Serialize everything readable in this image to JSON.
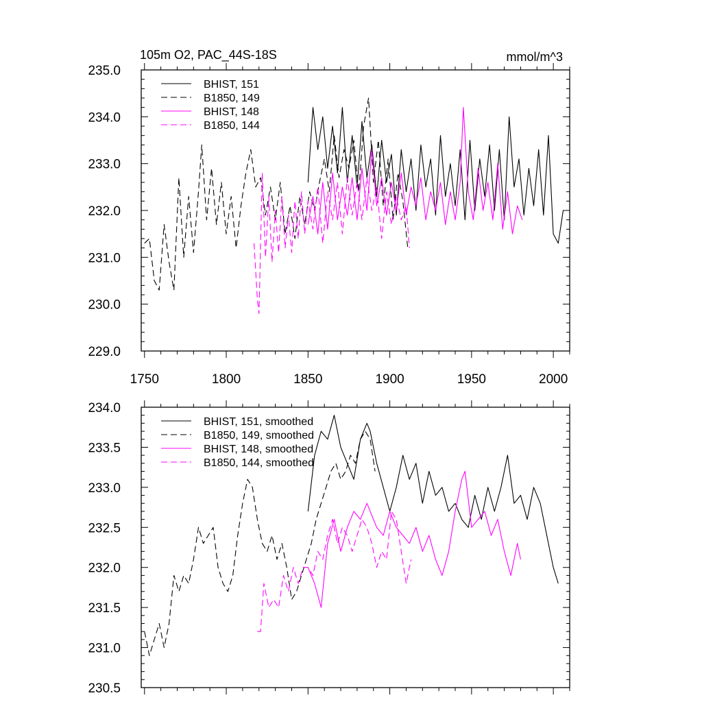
{
  "chart_data": [
    {
      "type": "line",
      "title": "105m O2, PAC_44S-18S",
      "units_label": "mmol/m^3",
      "xlim": [
        1748,
        2010
      ],
      "ylim": [
        229.0,
        235.0
      ],
      "x_ticks": [
        1750,
        1800,
        1850,
        1900,
        1950,
        2000
      ],
      "y_ticks": [
        "229.0",
        "230.0",
        "231.0",
        "232.0",
        "233.0",
        "234.0",
        "235.0"
      ],
      "legend_position": "top-left",
      "series": [
        {
          "name": "BHIST, 151",
          "color": "#000000",
          "dash": "solid",
          "x": [
            1850,
            1853,
            1856,
            1859,
            1862,
            1865,
            1868,
            1871,
            1874,
            1877,
            1880,
            1883,
            1886,
            1889,
            1892,
            1895,
            1898,
            1901,
            1904,
            1907,
            1910,
            1913,
            1916,
            1919,
            1922,
            1925,
            1928,
            1931,
            1934,
            1937,
            1940,
            1943,
            1946,
            1949,
            1952,
            1955,
            1958,
            1961,
            1964,
            1967,
            1970,
            1973,
            1976,
            1979,
            1982,
            1985,
            1988,
            1991,
            1994,
            1997,
            2000,
            2003,
            2006
          ],
          "y": [
            232.6,
            234.2,
            233.3,
            234.0,
            232.9,
            233.8,
            232.8,
            234.2,
            232.6,
            233.6,
            232.5,
            233.9,
            232.7,
            233.4,
            232.3,
            233.5,
            232.6,
            233.2,
            231.9,
            233.3,
            232.4,
            233.1,
            232.0,
            233.4,
            232.5,
            233.1,
            231.9,
            233.6,
            232.3,
            233.0,
            232.1,
            233.3,
            231.8,
            233.5,
            232.0,
            233.1,
            232.3,
            233.4,
            232.0,
            233.3,
            231.8,
            234.0,
            232.5,
            233.1,
            231.9,
            232.9,
            232.1,
            233.3,
            231.9,
            233.6,
            231.5,
            231.3,
            232.0
          ]
        },
        {
          "name": "B1850, 149",
          "color": "#000000",
          "dash": "dash",
          "x": [
            1750,
            1753,
            1756,
            1759,
            1762,
            1765,
            1768,
            1771,
            1774,
            1777,
            1780,
            1783,
            1785,
            1788,
            1791,
            1794,
            1797,
            1800,
            1803,
            1806,
            1809,
            1812,
            1815,
            1818,
            1821,
            1824,
            1827,
            1830,
            1833,
            1836,
            1839,
            1842,
            1845,
            1848,
            1851,
            1854,
            1857,
            1860,
            1863,
            1866,
            1869,
            1872,
            1875,
            1878,
            1881,
            1884,
            1887,
            1890,
            1893,
            1896,
            1899,
            1902,
            1905,
            1908,
            1911
          ],
          "y": [
            231.3,
            231.4,
            230.5,
            230.3,
            231.7,
            230.9,
            230.3,
            232.7,
            231.0,
            232.3,
            231.1,
            232.4,
            233.4,
            231.8,
            232.9,
            231.7,
            232.6,
            231.5,
            232.3,
            231.2,
            232.1,
            232.8,
            233.3,
            232.5,
            232.7,
            231.9,
            232.5,
            231.8,
            232.6,
            231.5,
            232.1,
            231.4,
            232.3,
            231.7,
            232.4,
            232.0,
            232.6,
            233.1,
            232.4,
            233.6,
            232.7,
            233.3,
            232.9,
            233.5,
            232.4,
            233.8,
            234.4,
            232.6,
            233.5,
            232.1,
            233.1,
            231.8,
            232.8,
            232.2,
            231.2
          ]
        },
        {
          "name": "BHIST, 148",
          "color": "#ff00ff",
          "dash": "solid",
          "x": [
            1850,
            1853,
            1856,
            1859,
            1862,
            1865,
            1868,
            1871,
            1874,
            1877,
            1880,
            1883,
            1886,
            1889,
            1892,
            1895,
            1898,
            1901,
            1904,
            1907,
            1910,
            1913,
            1916,
            1919,
            1922,
            1925,
            1928,
            1931,
            1934,
            1937,
            1940,
            1943,
            1945,
            1948,
            1951,
            1954,
            1957,
            1960,
            1963,
            1966,
            1969,
            1972,
            1975,
            1978,
            1981
          ],
          "y": [
            231.7,
            232.3,
            231.5,
            232.6,
            231.6,
            232.8,
            231.8,
            232.5,
            231.9,
            232.7,
            231.8,
            232.9,
            232.0,
            233.3,
            232.1,
            232.7,
            231.9,
            232.6,
            232.0,
            232.8,
            231.9,
            232.5,
            232.1,
            232.7,
            231.8,
            232.4,
            232.0,
            232.6,
            231.7,
            232.4,
            231.8,
            232.6,
            234.2,
            232.4,
            231.8,
            232.9,
            232.0,
            232.6,
            231.8,
            233.0,
            231.6,
            232.4,
            231.5,
            232.1,
            231.8
          ]
        },
        {
          "name": "B1850, 144",
          "color": "#ff00ff",
          "dash": "dash",
          "x": [
            1817,
            1819,
            1820,
            1822,
            1824,
            1826,
            1828,
            1830,
            1832,
            1834,
            1836,
            1838,
            1840,
            1842,
            1844,
            1846,
            1848,
            1850,
            1853,
            1856,
            1859,
            1862,
            1865,
            1868,
            1871,
            1874,
            1877,
            1880,
            1883,
            1886,
            1889,
            1892,
            1895,
            1898,
            1901,
            1904,
            1907,
            1910,
            1912
          ],
          "y": [
            231.3,
            230.1,
            229.8,
            232.8,
            231.0,
            232.3,
            230.9,
            232.0,
            231.1,
            232.3,
            231.2,
            231.9,
            231.1,
            232.2,
            231.4,
            232.4,
            231.5,
            232.2,
            231.6,
            232.5,
            231.3,
            232.4,
            231.8,
            232.6,
            231.5,
            232.7,
            231.9,
            232.6,
            231.8,
            232.7,
            232.0,
            232.5,
            231.4,
            232.4,
            231.7,
            232.3,
            231.8,
            232.1,
            231.2
          ]
        }
      ]
    },
    {
      "type": "line",
      "title": "",
      "xlim": [
        1748,
        2010
      ],
      "ylim": [
        230.5,
        234.0
      ],
      "x_ticks": [
        1750,
        1800,
        1850,
        1900,
        1950,
        2000
      ],
      "y_ticks": [
        "230.5",
        "231.0",
        "231.5",
        "232.0",
        "232.5",
        "233.0",
        "233.5",
        "234.0"
      ],
      "legend_position": "top-left",
      "series": [
        {
          "name": "BHIST, 151, smoothed",
          "color": "#000000",
          "dash": "solid",
          "x": [
            1850,
            1854,
            1858,
            1862,
            1866,
            1870,
            1874,
            1878,
            1882,
            1886,
            1888,
            1892,
            1896,
            1900,
            1904,
            1908,
            1912,
            1916,
            1920,
            1924,
            1928,
            1932,
            1936,
            1940,
            1944,
            1948,
            1952,
            1956,
            1960,
            1964,
            1968,
            1972,
            1976,
            1980,
            1984,
            1988,
            1992,
            1996,
            2000,
            2003
          ],
          "y": [
            232.7,
            233.4,
            233.7,
            233.6,
            233.9,
            233.5,
            233.3,
            233.1,
            233.6,
            233.8,
            233.7,
            233.3,
            233.0,
            232.7,
            233.0,
            233.4,
            233.1,
            233.3,
            232.8,
            233.2,
            232.9,
            233.0,
            232.7,
            232.8,
            232.6,
            232.5,
            232.9,
            232.6,
            233.0,
            232.7,
            233.0,
            233.4,
            232.8,
            232.9,
            232.6,
            233.0,
            232.8,
            232.4,
            232.0,
            231.8
          ]
        },
        {
          "name": "B1850, 149, smoothed",
          "color": "#000000",
          "dash": "dash",
          "x": [
            1750,
            1753,
            1756,
            1759,
            1762,
            1765,
            1768,
            1771,
            1774,
            1777,
            1780,
            1783,
            1786,
            1789,
            1792,
            1795,
            1798,
            1801,
            1804,
            1807,
            1810,
            1813,
            1816,
            1819,
            1822,
            1825,
            1828,
            1831,
            1834,
            1837,
            1840,
            1843,
            1846,
            1849,
            1852,
            1855,
            1858,
            1861,
            1864,
            1867,
            1870,
            1873,
            1876,
            1879,
            1882,
            1885,
            1888,
            1891
          ],
          "y": [
            231.2,
            230.9,
            231.1,
            231.3,
            231.0,
            231.3,
            231.9,
            231.7,
            231.9,
            231.8,
            232.1,
            232.5,
            232.3,
            232.4,
            232.5,
            232.0,
            231.8,
            231.7,
            231.9,
            232.4,
            232.8,
            233.1,
            233.0,
            232.6,
            232.3,
            232.2,
            232.4,
            232.1,
            232.3,
            232.0,
            231.6,
            231.7,
            231.9,
            232.1,
            232.3,
            232.6,
            232.8,
            233.0,
            233.2,
            233.3,
            233.1,
            233.2,
            233.4,
            233.3,
            233.6,
            233.7,
            233.6,
            233.2
          ]
        },
        {
          "name": "BHIST, 148, smoothed",
          "color": "#ff00ff",
          "dash": "solid",
          "x": [
            1850,
            1854,
            1858,
            1862,
            1866,
            1870,
            1874,
            1878,
            1882,
            1886,
            1888,
            1892,
            1896,
            1900,
            1904,
            1908,
            1912,
            1916,
            1920,
            1924,
            1928,
            1932,
            1936,
            1940,
            1944,
            1946,
            1950,
            1954,
            1958,
            1962,
            1966,
            1970,
            1974,
            1978,
            1980
          ],
          "y": [
            232.0,
            231.8,
            231.5,
            232.3,
            232.6,
            232.2,
            232.5,
            232.7,
            232.6,
            232.8,
            232.7,
            232.5,
            232.4,
            232.7,
            232.5,
            232.4,
            232.3,
            232.5,
            232.2,
            232.4,
            232.1,
            231.9,
            232.2,
            232.7,
            233.1,
            233.2,
            232.5,
            232.6,
            232.7,
            232.4,
            232.6,
            232.2,
            231.9,
            232.3,
            232.1
          ]
        },
        {
          "name": "B1850, 144, smoothed",
          "color": "#ff00ff",
          "dash": "dash",
          "x": [
            1819,
            1821,
            1823,
            1826,
            1829,
            1832,
            1835,
            1838,
            1841,
            1844,
            1847,
            1850,
            1853,
            1856,
            1859,
            1862,
            1865,
            1868,
            1871,
            1874,
            1877,
            1880,
            1883,
            1886,
            1889,
            1892,
            1895,
            1898,
            1901,
            1904,
            1907,
            1910,
            1913
          ],
          "y": [
            231.2,
            231.2,
            231.8,
            231.5,
            231.6,
            231.5,
            231.9,
            231.7,
            232.0,
            231.8,
            232.0,
            232.0,
            231.9,
            232.2,
            232.1,
            232.4,
            232.6,
            232.3,
            232.5,
            232.4,
            232.2,
            232.4,
            232.6,
            232.5,
            232.3,
            232.0,
            232.2,
            232.1,
            232.7,
            232.6,
            232.2,
            231.8,
            232.1
          ]
        }
      ]
    }
  ]
}
